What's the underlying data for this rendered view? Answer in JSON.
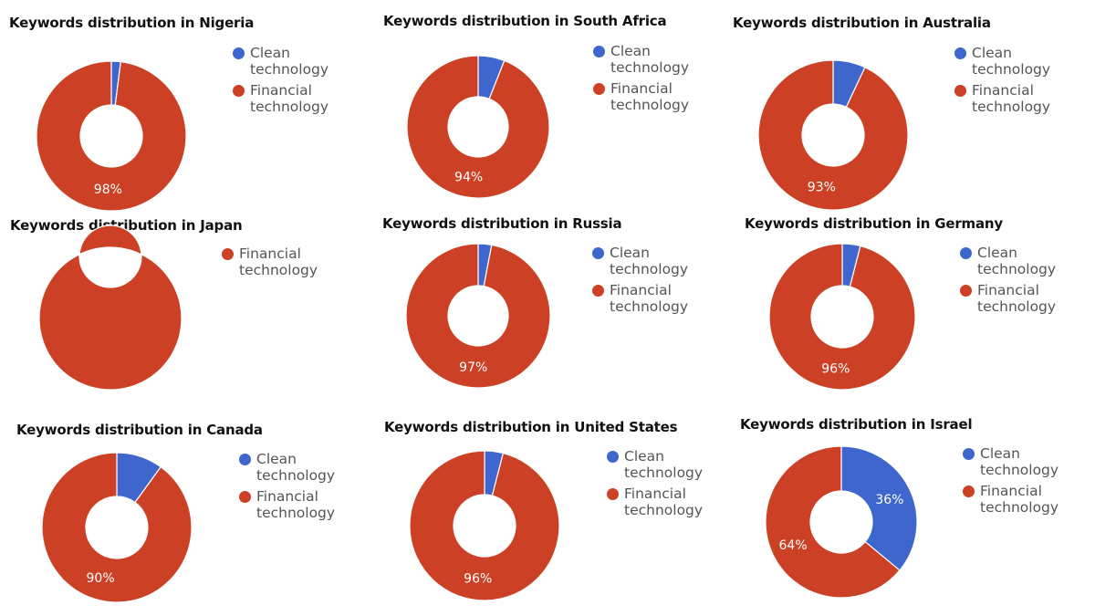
{
  "colors": {
    "clean": "#3E66CC",
    "financial": "#CC4125"
  },
  "chart_data": [
    {
      "type": "pie",
      "title": "Keywords distribution in Nigeria",
      "series": [
        {
          "name": "Clean technology",
          "value": 2,
          "label": ""
        },
        {
          "name": "Financial technology",
          "value": 98,
          "label": "98%"
        }
      ],
      "legend": [
        "Clean technology",
        "Financial technology"
      ],
      "legend_position": "right"
    },
    {
      "type": "pie",
      "title": "Keywords distribution in South Africa",
      "series": [
        {
          "name": "Clean technology",
          "value": 6,
          "label": ""
        },
        {
          "name": "Financial technology",
          "value": 94,
          "label": "94%"
        }
      ],
      "legend": [
        "Clean technology",
        "Financial technology"
      ],
      "legend_position": "right"
    },
    {
      "type": "pie",
      "title": "Keywords distribution in Australia",
      "series": [
        {
          "name": "Clean technology",
          "value": 7,
          "label": ""
        },
        {
          "name": "Financial technology",
          "value": 93,
          "label": "93%"
        }
      ],
      "legend": [
        "Clean technology",
        "Financial technology"
      ],
      "legend_position": "right"
    },
    {
      "type": "pie",
      "title": "Keywords distribution in Japan",
      "series": [
        {
          "name": "Financial technology",
          "value": 100,
          "label": ""
        }
      ],
      "legend": [
        "Financial technology"
      ],
      "legend_position": "right"
    },
    {
      "type": "pie",
      "title": "Keywords distribution in Russia",
      "series": [
        {
          "name": "Clean technology",
          "value": 3,
          "label": ""
        },
        {
          "name": "Financial technology",
          "value": 97,
          "label": "97%"
        }
      ],
      "legend": [
        "Clean technology",
        "Financial technology"
      ],
      "legend_position": "right"
    },
    {
      "type": "pie",
      "title": "Keywords distribution in Germany",
      "series": [
        {
          "name": "Clean technology",
          "value": 4,
          "label": ""
        },
        {
          "name": "Financial technology",
          "value": 96,
          "label": "96%"
        }
      ],
      "legend": [
        "Clean technology",
        "Financial technology"
      ],
      "legend_position": "right"
    },
    {
      "type": "pie",
      "title": "Keywords distribution in Canada",
      "series": [
        {
          "name": "Clean technology",
          "value": 10,
          "label": ""
        },
        {
          "name": "Financial technology",
          "value": 90,
          "label": "90%"
        }
      ],
      "legend": [
        "Clean technology",
        "Financial technology"
      ],
      "legend_position": "right"
    },
    {
      "type": "pie",
      "title": "Keywords distribution in United States",
      "series": [
        {
          "name": "Clean technology",
          "value": 4,
          "label": ""
        },
        {
          "name": "Financial technology",
          "value": 96,
          "label": "96%"
        }
      ],
      "legend": [
        "Clean technology",
        "Financial technology"
      ],
      "legend_position": "right"
    },
    {
      "type": "pie",
      "title": "Keywords distribution in Israel",
      "series": [
        {
          "name": "Clean technology",
          "value": 36,
          "label": "36%"
        },
        {
          "name": "Financial technology",
          "value": 64,
          "label": "64%"
        }
      ],
      "legend": [
        "Clean technology",
        "Financial technology"
      ],
      "legend_position": "right"
    }
  ]
}
